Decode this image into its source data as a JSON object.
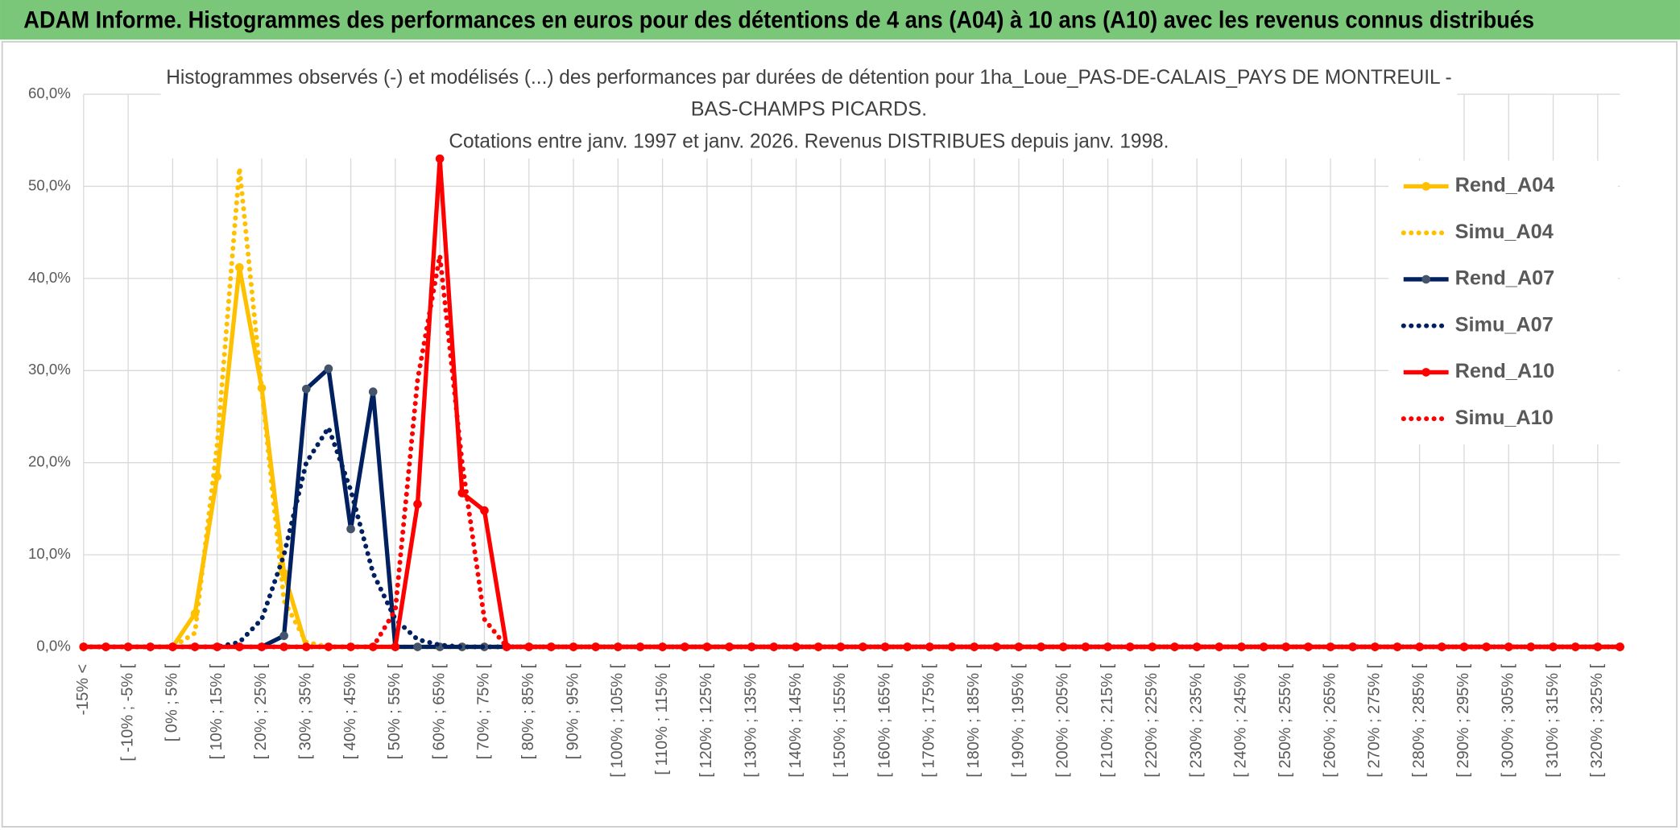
{
  "header": {
    "title": "ADAM Informe. Histogrammes des performances en euros pour des détentions de 4 ans (A04) à 10 ans (A10) avec les revenus connus distribués"
  },
  "chart_data": {
    "type": "line",
    "title": [
      "Histogrammes observés (-) et modélisés (...) des performances par durées de détention pour 1ha_Loue_PAS-DE-CALAIS_PAYS DE MONTREUIL -",
      "BAS-CHAMPS PICARDS.",
      "Cotations entre janv. 1997 et janv. 2026. Revenus DISTRIBUES depuis janv. 1998."
    ],
    "categories": [
      "-15% <",
      null,
      "[ -10% ; -5% [",
      null,
      "[ 0% ; 5% [",
      null,
      "[ 10% ; 15% [",
      null,
      "[ 20% ; 25% [",
      null,
      "[ 30% ; 35% [",
      null,
      "[ 40% ; 45% [",
      null,
      "[ 50% ; 55% [",
      null,
      "[ 60% ; 65% [",
      null,
      "[ 70% ; 75% [",
      null,
      "[ 80% ; 85% [",
      null,
      "[ 90% ; 95% [",
      null,
      "[ 100% ; 105% [",
      null,
      "[ 110% ; 115% [",
      null,
      "[ 120% ; 125% [",
      null,
      "[ 130% ; 135% [",
      null,
      "[ 140% ; 145% [",
      null,
      "[ 150% ; 155% [",
      null,
      "[ 160% ; 165% [",
      null,
      "[ 170% ; 175% [",
      null,
      "[ 180% ; 185% [",
      null,
      "[ 190% ; 195% [",
      null,
      "[ 200% ; 205% [",
      null,
      "[ 210% ; 215% [",
      null,
      "[ 220% ; 225% [",
      null,
      "[ 230% ; 235% [",
      null,
      "[ 240% ; 245% [",
      null,
      "[ 250% ; 255% [",
      null,
      "[ 260% ; 265% [",
      null,
      "[ 270% ; 275% [",
      null,
      "[ 280% ; 285% [",
      null,
      "[ 290% ; 295% [",
      null,
      "[ 300% ; 305% [",
      null,
      "[ 310% ; 315% [",
      null,
      "[ 320% ; 325% [",
      null
    ],
    "series": [
      {
        "name": "Rend_A04",
        "color": "#FFC000",
        "style": "solid",
        "markers": true,
        "values": [
          0,
          0,
          0,
          0,
          0,
          3.6,
          18.5,
          41.2,
          28.1,
          8,
          0,
          0,
          0,
          0,
          0,
          0,
          0,
          0,
          0,
          0,
          0,
          0,
          0,
          0,
          0,
          0,
          0,
          0,
          0,
          0,
          0,
          0,
          0,
          0,
          0,
          0,
          0,
          0,
          0,
          0,
          0,
          0,
          0,
          0,
          0,
          0,
          0,
          0,
          0,
          0,
          0,
          0,
          0,
          0,
          0,
          0,
          0,
          0,
          0,
          0,
          0,
          0,
          0,
          0,
          0,
          0,
          0,
          0,
          0,
          0
        ]
      },
      {
        "name": "Simu_A04",
        "color": "#FFC000",
        "style": "dotted",
        "markers": false,
        "values": [
          0,
          0,
          0,
          0,
          0,
          1.5,
          22,
          52,
          28,
          5,
          0.5,
          0,
          0,
          0,
          0,
          0,
          0,
          0,
          0,
          0,
          0,
          0,
          0,
          0,
          0,
          0,
          0,
          0,
          0,
          0,
          0,
          0,
          0,
          0,
          0,
          0,
          0,
          0,
          0,
          0,
          0,
          0,
          0,
          0,
          0,
          0,
          0,
          0,
          0,
          0,
          0,
          0,
          0,
          0,
          0,
          0,
          0,
          0,
          0,
          0,
          0,
          0,
          0,
          0,
          0,
          0,
          0,
          0,
          0,
          0
        ]
      },
      {
        "name": "Rend_A07",
        "color": "#002060",
        "style": "solid",
        "markers": true,
        "values": [
          0,
          0,
          0,
          0,
          0,
          0,
          0,
          0,
          0,
          1.2,
          28,
          30.2,
          12.8,
          27.7,
          0,
          0,
          0,
          0,
          0,
          0,
          0,
          0,
          0,
          0,
          0,
          0,
          0,
          0,
          0,
          0,
          0,
          0,
          0,
          0,
          0,
          0,
          0,
          0,
          0,
          0,
          0,
          0,
          0,
          0,
          0,
          0,
          0,
          0,
          0,
          0,
          0,
          0,
          0,
          0,
          0,
          0,
          0,
          0,
          0,
          0,
          0,
          0,
          0,
          0,
          0,
          0,
          0,
          0,
          0,
          0
        ]
      },
      {
        "name": "Simu_A07",
        "color": "#002060",
        "style": "dotted",
        "markers": false,
        "values": [
          0,
          0,
          0,
          0,
          0,
          0,
          0,
          0.5,
          3,
          10,
          20,
          23.8,
          17,
          8,
          3,
          0.8,
          0.2,
          0,
          0,
          0,
          0,
          0,
          0,
          0,
          0,
          0,
          0,
          0,
          0,
          0,
          0,
          0,
          0,
          0,
          0,
          0,
          0,
          0,
          0,
          0,
          0,
          0,
          0,
          0,
          0,
          0,
          0,
          0,
          0,
          0,
          0,
          0,
          0,
          0,
          0,
          0,
          0,
          0,
          0,
          0,
          0,
          0,
          0,
          0,
          0,
          0,
          0,
          0,
          0,
          0
        ]
      },
      {
        "name": "Rend_A10",
        "color": "#FF0000",
        "style": "solid",
        "markers": true,
        "values": [
          0,
          0,
          0,
          0,
          0,
          0,
          0,
          0,
          0,
          0,
          0,
          0,
          0,
          0,
          0,
          15.5,
          53,
          16.7,
          14.8,
          0,
          0,
          0,
          0,
          0,
          0,
          0,
          0,
          0,
          0,
          0,
          0,
          0,
          0,
          0,
          0,
          0,
          0,
          0,
          0,
          0,
          0,
          0,
          0,
          0,
          0,
          0,
          0,
          0,
          0,
          0,
          0,
          0,
          0,
          0,
          0,
          0,
          0,
          0,
          0,
          0,
          0,
          0,
          0,
          0,
          0,
          0,
          0,
          0,
          0,
          0
        ]
      },
      {
        "name": "Simu_A10",
        "color": "#FF0000",
        "style": "dotted",
        "markers": false,
        "values": [
          0,
          0,
          0,
          0,
          0,
          0,
          0,
          0,
          0,
          0,
          0,
          0,
          0,
          0,
          4,
          29,
          42.5,
          20,
          3,
          0,
          0,
          0,
          0,
          0,
          0,
          0,
          0,
          0,
          0,
          0,
          0,
          0,
          0,
          0,
          0,
          0,
          0,
          0,
          0,
          0,
          0,
          0,
          0,
          0,
          0,
          0,
          0,
          0,
          0,
          0,
          0,
          0,
          0,
          0,
          0,
          0,
          0,
          0,
          0,
          0,
          0,
          0,
          0,
          0,
          0,
          0,
          0,
          0,
          0,
          0
        ]
      }
    ],
    "ylim": [
      0,
      60
    ],
    "yticks": [
      {
        "value": 0,
        "label": "0,0%"
      },
      {
        "value": 10,
        "label": "10,0%"
      },
      {
        "value": 20,
        "label": "20,0%"
      },
      {
        "value": 30,
        "label": "30,0%"
      },
      {
        "value": 40,
        "label": "40,0%"
      },
      {
        "value": 50,
        "label": "50,0%"
      },
      {
        "value": 60,
        "label": "60,0%"
      }
    ],
    "grid": true,
    "legend": "right"
  }
}
